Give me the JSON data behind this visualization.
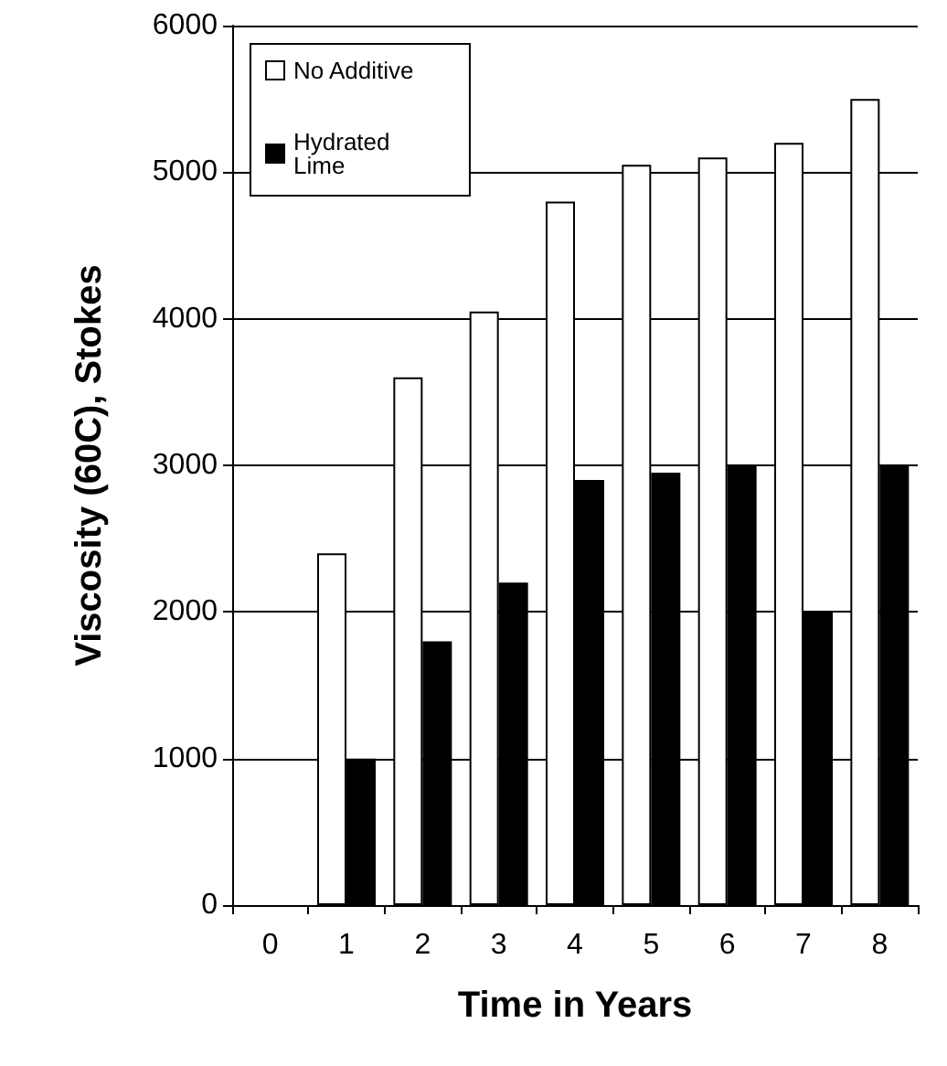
{
  "chart_data": {
    "type": "bar",
    "xlabel": "Time in Years",
    "ylabel": "Viscosity (60C), Stokes",
    "categories": [
      "0",
      "1",
      "2",
      "3",
      "4",
      "5",
      "6",
      "7",
      "8"
    ],
    "series": [
      {
        "name": "No Additive",
        "color": "#ffffff",
        "values": [
          null,
          2400,
          3600,
          4050,
          4800,
          5050,
          5100,
          5200,
          5500
        ]
      },
      {
        "name": "Hydrated Lime",
        "color": "#000000",
        "values": [
          null,
          1000,
          1800,
          2200,
          2900,
          2950,
          3000,
          2000,
          3000
        ]
      }
    ],
    "ylim": [
      0,
      6000
    ],
    "yticks": [
      0,
      1000,
      2000,
      3000,
      4000,
      5000,
      6000
    ],
    "grid": "y",
    "legend": "top left"
  }
}
